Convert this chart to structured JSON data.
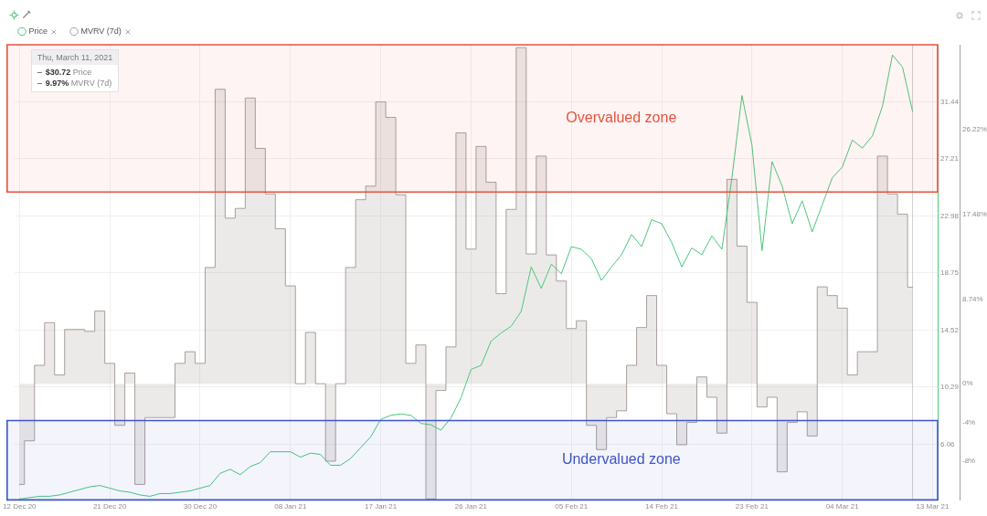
{
  "chart_data": {
    "type": "line",
    "x": [
      "2020-12-12",
      "2020-12-13",
      "2020-12-14",
      "2020-12-15",
      "2020-12-16",
      "2020-12-17",
      "2020-12-18",
      "2020-12-19",
      "2020-12-20",
      "2020-12-21",
      "2020-12-22",
      "2020-12-23",
      "2020-12-24",
      "2020-12-25",
      "2020-12-26",
      "2020-12-27",
      "2020-12-28",
      "2020-12-29",
      "2020-12-30",
      "2020-12-31",
      "2021-01-01",
      "2021-01-02",
      "2021-01-03",
      "2021-01-04",
      "2021-01-05",
      "2021-01-06",
      "2021-01-07",
      "2021-01-08",
      "2021-01-09",
      "2021-01-10",
      "2021-01-11",
      "2021-01-12",
      "2021-01-13",
      "2021-01-14",
      "2021-01-15",
      "2021-01-16",
      "2021-01-17",
      "2021-01-18",
      "2021-01-19",
      "2021-01-20",
      "2021-01-21",
      "2021-01-22",
      "2021-01-23",
      "2021-01-24",
      "2021-01-25",
      "2021-01-26",
      "2021-01-27",
      "2021-01-28",
      "2021-01-29",
      "2021-01-30",
      "2021-01-31",
      "2021-02-01",
      "2021-02-02",
      "2021-02-03",
      "2021-02-04",
      "2021-02-05",
      "2021-02-06",
      "2021-02-07",
      "2021-02-08",
      "2021-02-09",
      "2021-02-10",
      "2021-02-11",
      "2021-02-12",
      "2021-02-13",
      "2021-02-14",
      "2021-02-15",
      "2021-02-16",
      "2021-02-17",
      "2021-02-18",
      "2021-02-19",
      "2021-02-20",
      "2021-02-21",
      "2021-02-22",
      "2021-02-23",
      "2021-02-24",
      "2021-02-25",
      "2021-02-26",
      "2021-02-27",
      "2021-02-28",
      "2021-03-01",
      "2021-03-02",
      "2021-03-03",
      "2021-03-04",
      "2021-03-05",
      "2021-03-06",
      "2021-03-07",
      "2021-03-08",
      "2021-03-09",
      "2021-03-10",
      "2021-03-11"
    ],
    "series": [
      {
        "name": "Price",
        "color": "#4cc77d",
        "values": [
          2.0,
          2.1,
          2.2,
          2.2,
          2.3,
          2.5,
          2.7,
          2.9,
          3.0,
          2.8,
          2.6,
          2.5,
          2.3,
          2.2,
          2.4,
          2.4,
          2.5,
          2.6,
          2.8,
          3.0,
          3.9,
          4.2,
          3.8,
          4.4,
          4.7,
          5.5,
          5.5,
          5.5,
          5.1,
          5.4,
          5.3,
          4.5,
          4.5,
          5.0,
          5.8,
          6.6,
          7.9,
          8.2,
          8.3,
          8.2,
          7.6,
          7.5,
          7.1,
          8.0,
          9.5,
          11.6,
          11.9,
          13.7,
          14.3,
          14.8,
          15.9,
          19.2,
          17.6,
          19.4,
          18.7,
          20.7,
          20.5,
          19.8,
          18.2,
          19.2,
          20.1,
          21.6,
          20.7,
          22.7,
          22.4,
          21.0,
          19.2,
          20.6,
          20.1,
          21.5,
          20.5,
          25.8,
          31.9,
          28.2,
          20.4,
          27.0,
          25.2,
          22.4,
          24.1,
          21.8,
          23.8,
          25.8,
          26.6,
          28.6,
          28.0,
          28.9,
          31.1,
          34.9,
          34.0,
          30.72
        ]
      },
      {
        "name": "MVRV (7d)",
        "type": "step",
        "color": "#a89f9c",
        "axis": "y2",
        "values": [
          -10.4,
          -5.9,
          1.9,
          6.3,
          0.9,
          5.6,
          5.6,
          5.4,
          7.5,
          2.1,
          -4.3,
          1.1,
          -10.4,
          -3.5,
          -3.5,
          -3.5,
          2.1,
          3.3,
          2.1,
          12.0,
          30.4,
          17.1,
          18.1,
          29.5,
          24.3,
          19.6,
          16.0,
          10.1,
          0,
          5.3,
          0,
          -8.0,
          0,
          12.0,
          19.0,
          20.4,
          29.1,
          27.5,
          19.5,
          2.1,
          4.0,
          -11.9,
          -0.7,
          3.8,
          25.9,
          13.9,
          24.5,
          20.8,
          9.3,
          18.0,
          34.7,
          13.4,
          23.5,
          13.3,
          10.6,
          5.7,
          6.5,
          -4.3,
          -6.8,
          -3.5,
          -2.8,
          1.9,
          5.8,
          9.1,
          1.9,
          -3.1,
          -6.3,
          -4.0,
          0.7,
          -1.4,
          -5.1,
          21.1,
          14.2,
          8.4,
          -2.4,
          -1.4,
          -9.1,
          -4.0,
          -2.9,
          -5.4,
          10.0,
          9.1,
          7.8,
          0.9,
          3.3,
          3.3,
          23.5,
          19.6,
          17.5,
          9.97
        ]
      }
    ],
    "xlim": [
      "2020-12-11T12:00",
      "2021-03-13T12:00"
    ],
    "xticks": [
      {
        "value": "2020-12-12",
        "label": "12 Dec 20"
      },
      {
        "value": "2020-12-21",
        "label": "21 Dec 20"
      },
      {
        "value": "2020-12-30",
        "label": "30 Dec 20"
      },
      {
        "value": "2021-01-08",
        "label": "08 Jan 21"
      },
      {
        "value": "2021-01-17",
        "label": "17 Jan 21"
      },
      {
        "value": "2021-01-26",
        "label": "26 Jan 21"
      },
      {
        "value": "2021-02-05",
        "label": "05 Feb 21"
      },
      {
        "value": "2021-02-14",
        "label": "14 Feb 21"
      },
      {
        "value": "2021-02-23",
        "label": "23 Feb 21"
      },
      {
        "value": "2021-03-04",
        "label": "04 Mar 21"
      },
      {
        "value": "2021-03-13",
        "label": "13 Mar 21"
      }
    ],
    "ylim": [
      1.93,
      35.66
    ],
    "yticks": [
      6.06,
      10.29,
      14.52,
      18.75,
      22.98,
      27.21,
      31.44
    ],
    "y2lim": [
      -12,
      35
    ],
    "y2ticks": [
      {
        "value": -8,
        "label": "-8%"
      },
      {
        "value": -4,
        "label": "-4%"
      },
      {
        "value": 0,
        "label": "0%"
      },
      {
        "value": 8.74,
        "label": "8.74%"
      },
      {
        "value": 17.48,
        "label": "17.48%"
      },
      {
        "value": 26.22,
        "label": "26.22%"
      }
    ],
    "grid": true,
    "legend": "top left",
    "bands": [
      {
        "axis": "y2",
        "from": 19.8,
        "to": 35,
        "label": "Overvalued zone",
        "color": "#e5533d"
      },
      {
        "axis": "y2",
        "from": -12,
        "to": -3.8,
        "label": "Undervalued zone",
        "color": "#3d55c8"
      }
    ],
    "ref_lines": [
      {
        "axis": "x",
        "value": "2021-03-11",
        "color": "#d0d0d0"
      }
    ],
    "annotations": [
      "Thu, March 11, 2021",
      "$30.72 Price",
      "9.97% MVRV (7d)"
    ]
  }
}
